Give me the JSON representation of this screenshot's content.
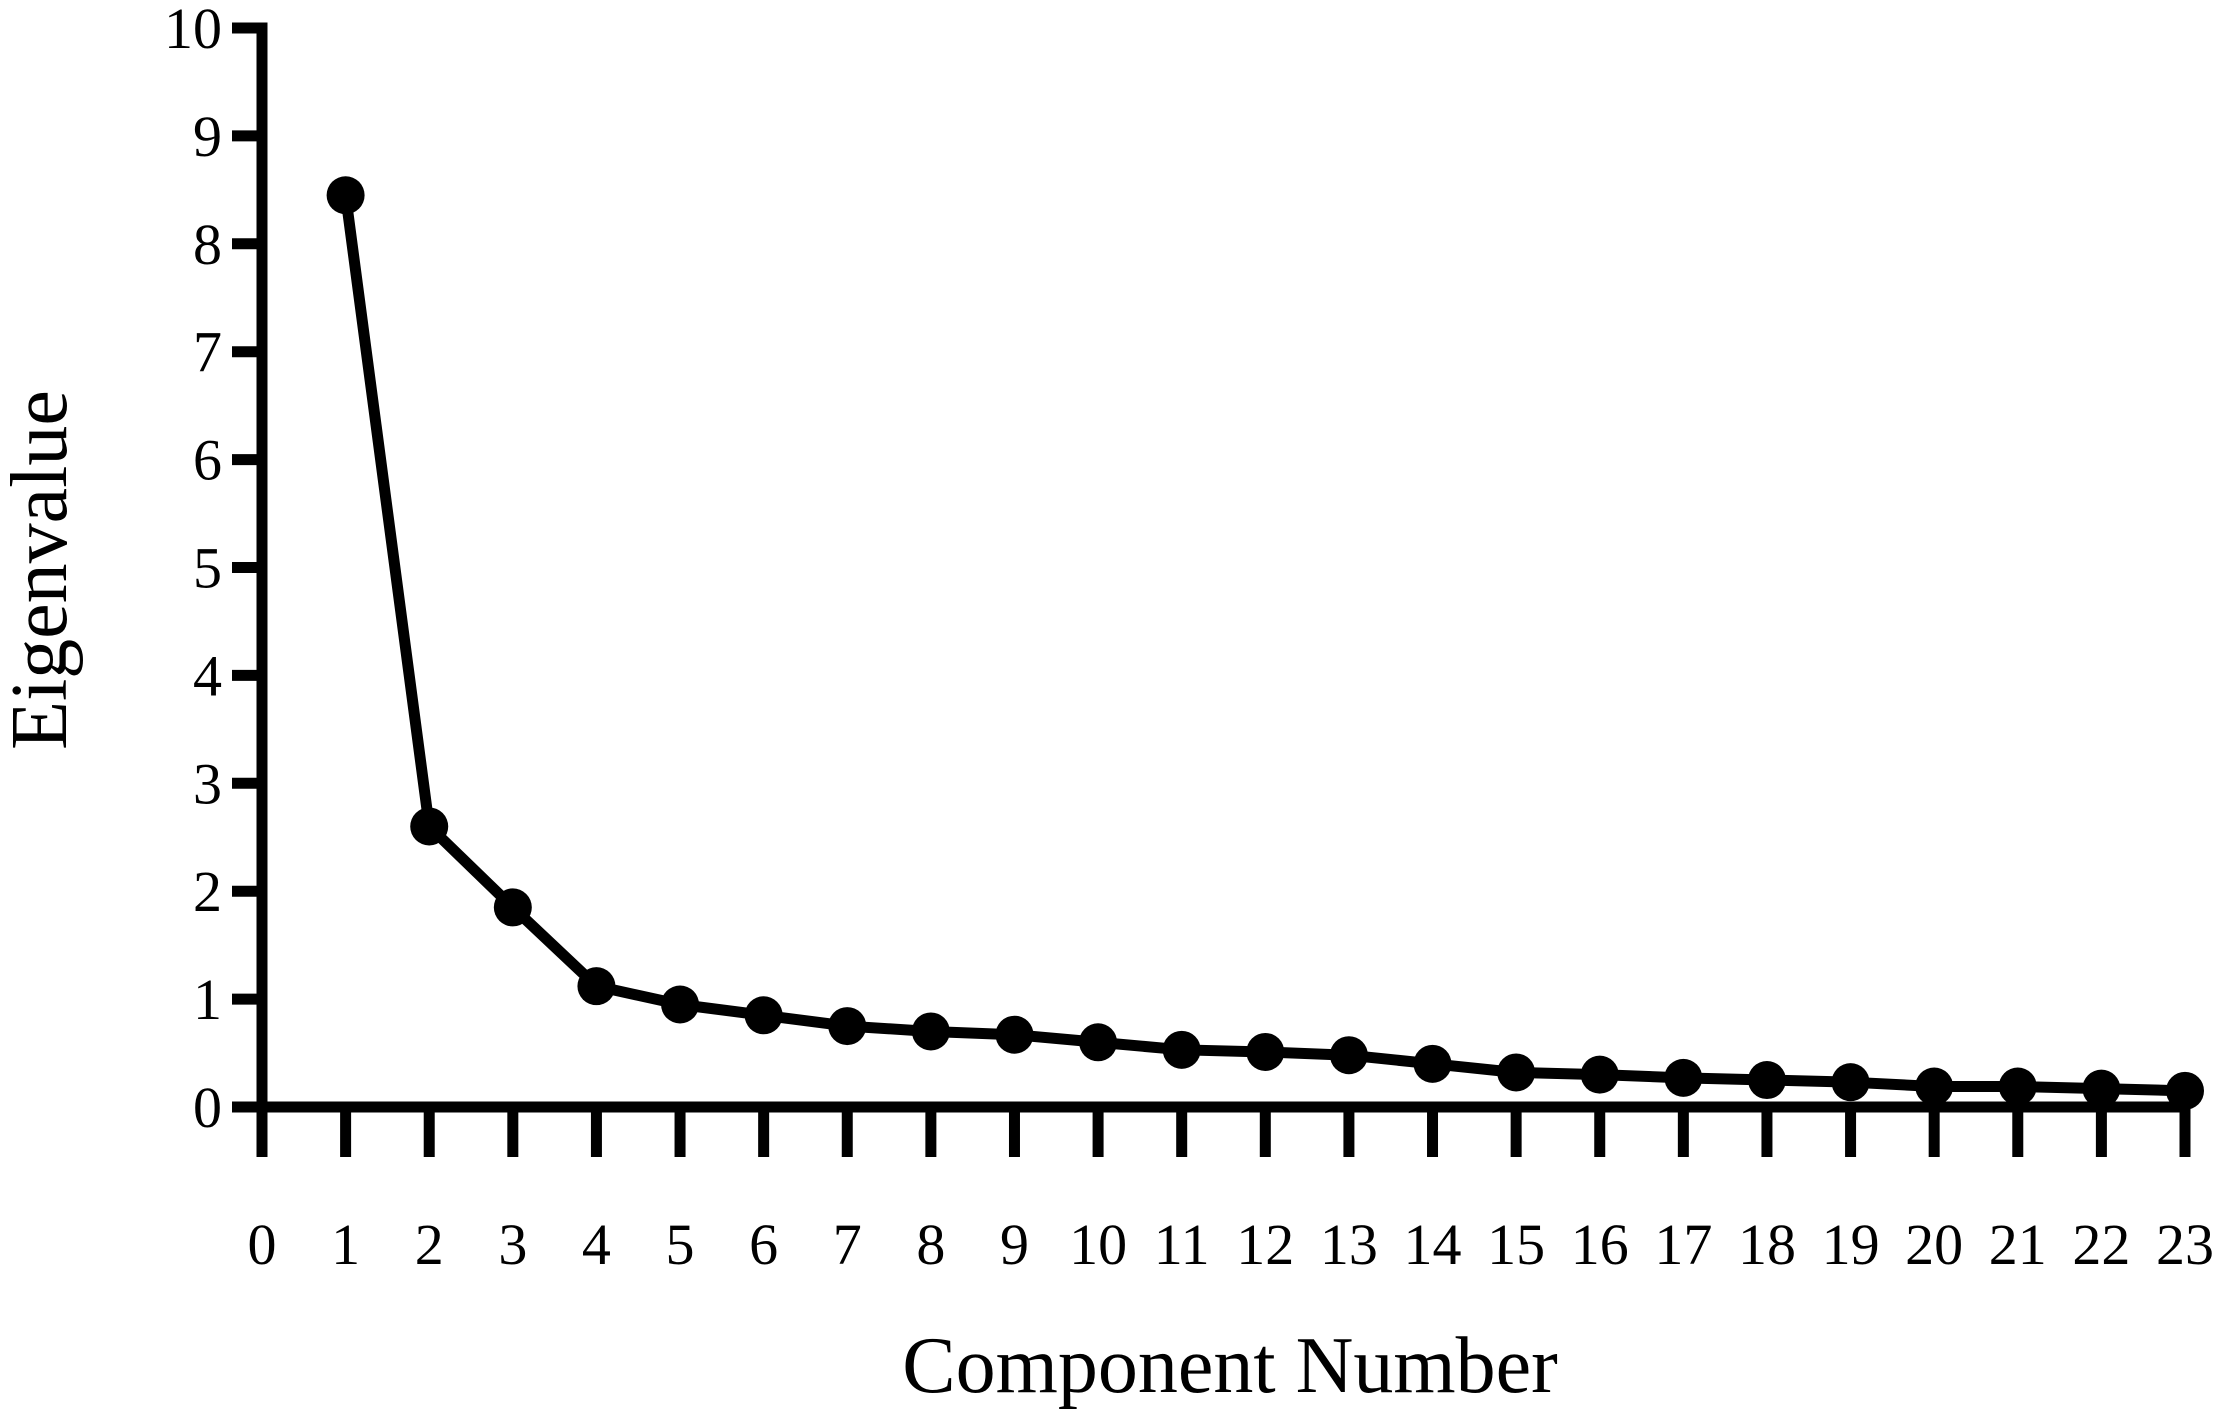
{
  "chart_data": {
    "type": "line",
    "x_label": "Component Number",
    "y_label": "Eigenvalue",
    "x": [
      1,
      2,
      3,
      4,
      5,
      6,
      7,
      8,
      9,
      10,
      11,
      12,
      13,
      14,
      15,
      16,
      17,
      18,
      19,
      20,
      21,
      22,
      23
    ],
    "series": [
      {
        "color": "#000000",
        "values": [
          8.45,
          2.6,
          1.85,
          1.12,
          0.95,
          0.85,
          0.75,
          0.7,
          0.67,
          0.6,
          0.53,
          0.51,
          0.48,
          0.4,
          0.32,
          0.3,
          0.27,
          0.25,
          0.23,
          0.19,
          0.19,
          0.17,
          0.15
        ]
      }
    ],
    "xlim": [
      0,
      23
    ],
    "xticks": [
      0,
      1,
      2,
      3,
      4,
      5,
      6,
      7,
      8,
      9,
      10,
      11,
      12,
      13,
      14,
      15,
      16,
      17,
      18,
      19,
      20,
      21,
      22,
      23
    ],
    "ylim": [
      0,
      10
    ],
    "yticks": [
      0,
      1,
      2,
      3,
      4,
      5,
      6,
      7,
      8,
      9,
      10
    ],
    "grid": false
  }
}
